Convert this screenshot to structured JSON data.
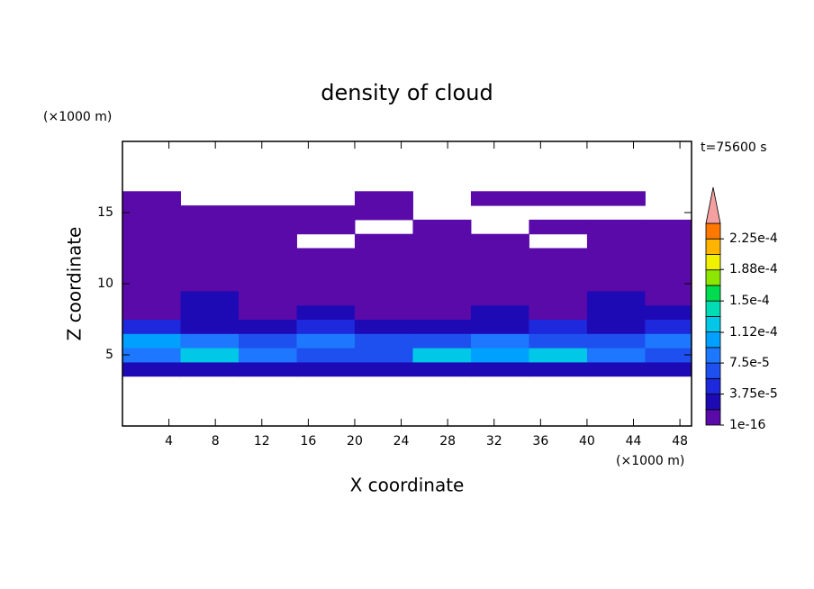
{
  "chart_data": {
    "type": "contour",
    "title": "density of cloud",
    "time_label": "t=75600 s",
    "xlabel": "X coordinate",
    "ylabel": "Z coordinate",
    "x_unit": "(×1000 m)",
    "y_unit": "(×1000 m)",
    "xlim": [
      0,
      49
    ],
    "ylim": [
      0,
      20
    ],
    "xticks": [
      4,
      8,
      12,
      16,
      20,
      24,
      28,
      32,
      36,
      40,
      44,
      48
    ],
    "yticks": [
      5,
      10,
      15
    ],
    "x": [
      2.5,
      7.5,
      12.5,
      17.5,
      22.5,
      27.5,
      32.5,
      37.5,
      42.5,
      47.5
    ],
    "z": [
      4,
      5,
      6,
      7,
      8,
      9,
      10,
      11,
      12,
      13,
      14,
      15,
      16
    ],
    "values": [
      [
        2.5e-05,
        3e-05,
        2e-05,
        2.5e-05,
        3e-05,
        2e-05,
        2.5e-05,
        3e-05,
        2e-05,
        2.5e-05
      ],
      [
        9e-05,
        0.00012,
        8e-05,
        6e-05,
        7e-05,
        0.00013,
        0.00011,
        0.00012,
        8e-05,
        6e-05
      ],
      [
        0.0001,
        9e-05,
        7e-05,
        8e-05,
        6e-05,
        7e-05,
        8e-05,
        6e-05,
        7e-05,
        9e-05
      ],
      [
        4e-05,
        3e-05,
        3.5e-05,
        4e-05,
        3e-05,
        2.5e-05,
        3e-05,
        4e-05,
        3e-05,
        4.5e-05
      ],
      [
        1.5e-05,
        2e-05,
        1e-05,
        2e-05,
        1.5e-05,
        1e-05,
        2e-05,
        1.5e-05,
        2e-05,
        2.5e-05
      ],
      [
        1e-05,
        2e-05,
        1e-05,
        1.5e-05,
        1e-05,
        1e-05,
        1.5e-05,
        1e-05,
        2e-05,
        1e-05
      ],
      [
        8e-06,
        1e-05,
        5e-06,
        8e-06,
        5e-06,
        8e-06,
        5e-06,
        8e-06,
        1e-05,
        5e-06
      ],
      [
        5e-06,
        5e-06,
        5e-06,
        5e-06,
        5e-06,
        5e-06,
        5e-06,
        5e-06,
        5e-06,
        5e-06
      ],
      [
        5e-06,
        5e-06,
        5e-06,
        5e-06,
        5e-06,
        5e-06,
        5e-06,
        5e-06,
        5e-06,
        5e-06
      ],
      [
        5e-06,
        5e-06,
        5e-06,
        null,
        5e-06,
        5e-06,
        5e-06,
        null,
        5e-06,
        5e-06
      ],
      [
        5e-06,
        5e-06,
        5e-06,
        5e-06,
        null,
        5e-06,
        null,
        5e-06,
        5e-06,
        5e-06
      ],
      [
        5e-06,
        5e-06,
        5e-06,
        5e-06,
        5e-06,
        null,
        null,
        null,
        null,
        null
      ],
      [
        5e-06,
        null,
        null,
        null,
        5e-06,
        null,
        5e-06,
        5e-06,
        5e-06,
        null
      ]
    ],
    "colorbar": {
      "levels": [
        1e-16,
        1.875e-05,
        3.75e-05,
        5.625e-05,
        7.5e-05,
        9.375e-05,
        0.0001125,
        0.00013125,
        0.00015,
        0.00016875,
        0.0001875,
        0.00020625,
        0.000225,
        0.00024375
      ],
      "colors": [
        "#5a0aa8",
        "#1e0ab4",
        "#1e28dc",
        "#1e50f0",
        "#1e78ff",
        "#00a0ff",
        "#00c8e6",
        "#00dcb4",
        "#00dc50",
        "#8ce600",
        "#f0f000",
        "#ffb400",
        "#ff7800"
      ],
      "extend_color": "#f4a0a0",
      "ticks": [
        1e-16,
        {
          "value": 3.75e-05,
          "label": "3.75e-5"
        },
        {
          "value": 7.5e-05,
          "label": "7.5e-5"
        },
        {
          "value": 0.000112,
          "label": "1.12e-4"
        },
        {
          "value": 0.00015,
          "label": "1.5e-4"
        },
        {
          "value": 0.000188,
          "label": "1.88e-4"
        },
        {
          "value": 0.000225,
          "label": "2.25e-4"
        }
      ]
    }
  }
}
